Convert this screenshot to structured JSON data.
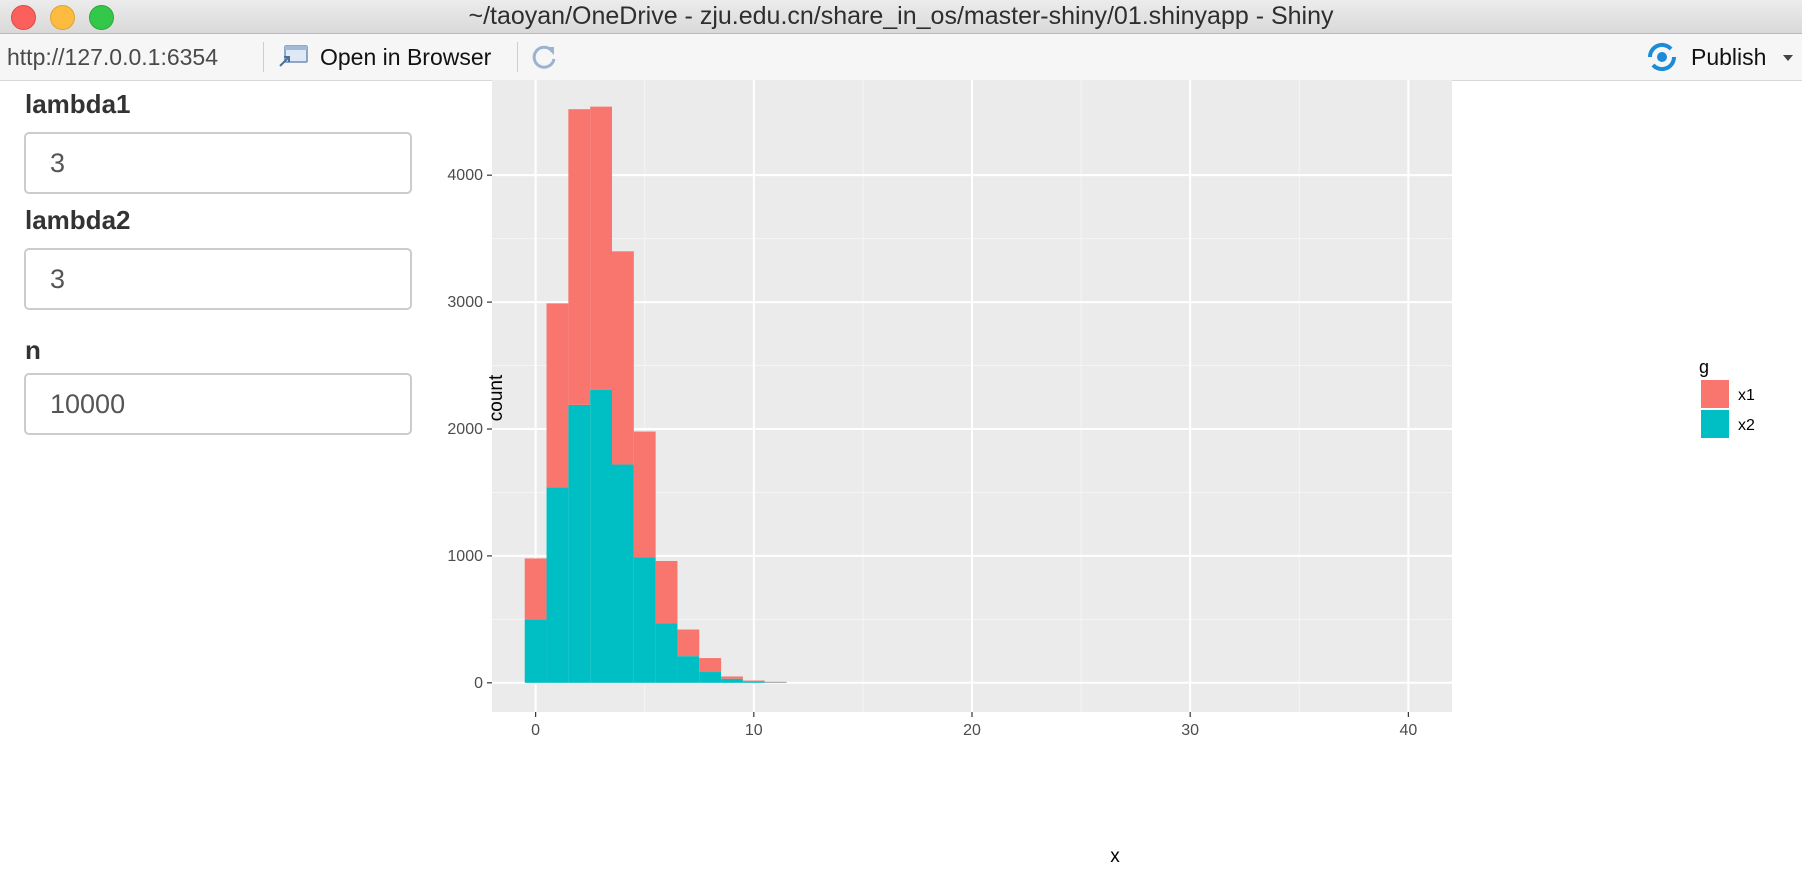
{
  "window": {
    "title": "~/taoyan/OneDrive - zju.edu.cn/share_in_os/master-shiny/01.shinyapp - Shiny"
  },
  "toolbar": {
    "url": "http://127.0.0.1:6354",
    "open_in_browser_label": "Open in Browser",
    "publish_label": "Publish",
    "icons": {
      "open": "open-in-browser-icon",
      "reload": "reload-icon",
      "publish": "publish-icon",
      "caret": "chevron-down-icon"
    }
  },
  "inputs": [
    {
      "label": "lambda1",
      "value": "3"
    },
    {
      "label": "lambda2",
      "value": "3"
    },
    {
      "label": "n",
      "value": "10000"
    }
  ],
  "colors": {
    "x1": "#F8766D",
    "x2": "#00BFC4",
    "panel": "#EBEBEB"
  },
  "chart_data": {
    "type": "bar",
    "stacked": true,
    "xlabel": "x",
    "ylabel": "count",
    "x_ticks": [
      "0",
      "10",
      "20",
      "30",
      "40"
    ],
    "y_ticks": [
      "0",
      "1000",
      "2000",
      "3000",
      "4000"
    ],
    "xlim": [
      -2,
      42
    ],
    "ylim": [
      -230,
      4750
    ],
    "grid": true,
    "bin_width": 1,
    "bins": [
      0,
      1,
      2,
      3,
      4,
      5,
      6,
      7,
      8,
      9,
      10,
      11
    ],
    "legend": {
      "title": "g",
      "position": "right",
      "entries": [
        "x1",
        "x2"
      ]
    },
    "series": [
      {
        "name": "x2",
        "values": [
          500,
          1540,
          2190,
          2310,
          1720,
          990,
          470,
          210,
          85,
          32,
          11,
          3
        ]
      },
      {
        "name": "x1",
        "values": [
          480,
          1450,
          2330,
          2230,
          1680,
          990,
          490,
          210,
          110,
          18,
          7,
          5
        ]
      }
    ]
  }
}
